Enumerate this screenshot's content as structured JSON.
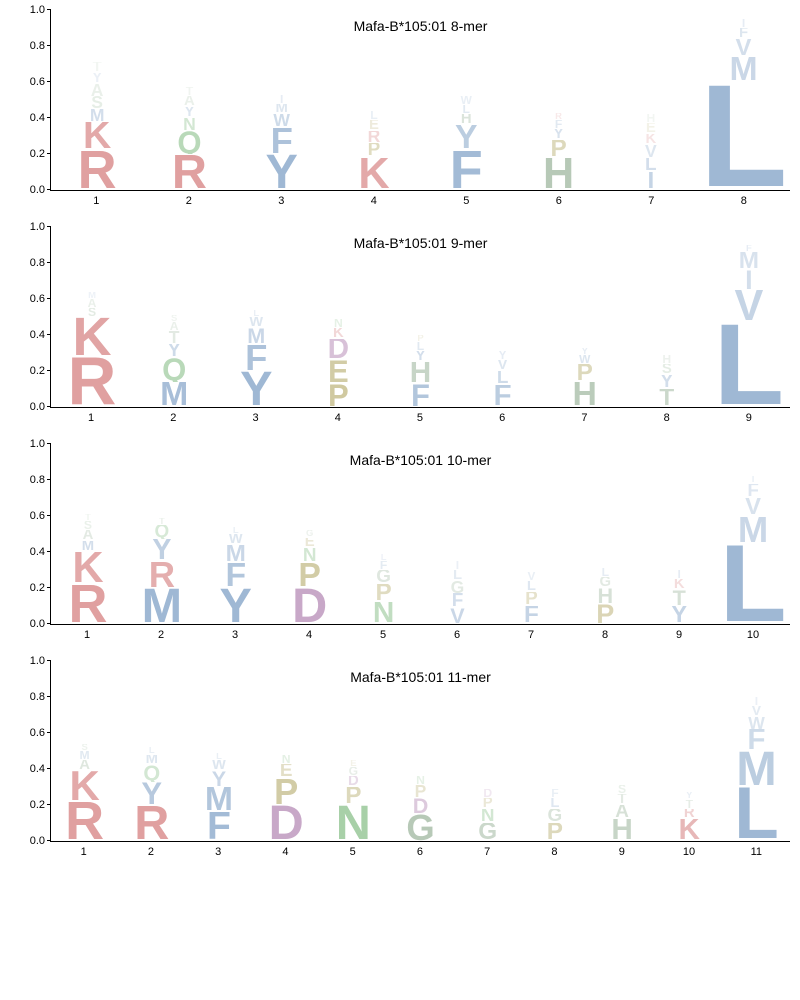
{
  "figure": {
    "background": "#ffffff",
    "axis_color": "#000000",
    "tick_fontsize": 11,
    "title_fontsize": 14,
    "yticks": [
      0.0,
      0.2,
      0.4,
      0.6,
      0.8,
      1.0
    ],
    "ytick_labels": [
      "0.0",
      "0.2",
      "0.4",
      "0.6",
      "0.8",
      "1.0"
    ],
    "letter_font": "Arial",
    "letter_weight": 900
  },
  "color_map": {
    "A": "#b0c4b0",
    "C": "#b0c4b0",
    "G": "#b0c4b0",
    "I": "#9fb8d4",
    "L": "#9fb8d4",
    "M": "#9fb8d4",
    "V": "#9fb8d4",
    "W": "#9fb8d4",
    "F": "#9fb8d4",
    "Y": "#9fb8d4",
    "R": "#e0a0a0",
    "K": "#e0a0a0",
    "H": "#b0c4b0",
    "D": "#c8a8c8",
    "E": "#c8c090",
    "N": "#a8d0a8",
    "Q": "#a8d0a8",
    "P": "#c8c090",
    "S": "#b0c8b0",
    "T": "#b0c4b0"
  },
  "panels": [
    {
      "title": "Mafa-B*105:01 8-mer",
      "positions": 8,
      "columns": [
        [
          [
            "R",
            0.22,
            1.0
          ],
          [
            "K",
            0.16,
            0.9
          ],
          [
            "M",
            0.07,
            0.45
          ],
          [
            "S",
            0.07,
            0.3
          ],
          [
            "A",
            0.07,
            0.25
          ],
          [
            "Y",
            0.06,
            0.2
          ],
          [
            "T",
            0.06,
            0.15
          ]
        ],
        [
          [
            "R",
            0.2,
            1.0
          ],
          [
            "Q",
            0.13,
            0.8
          ],
          [
            "N",
            0.07,
            0.5
          ],
          [
            "Y",
            0.06,
            0.35
          ],
          [
            "A",
            0.06,
            0.25
          ],
          [
            "T",
            0.05,
            0.18
          ]
        ],
        [
          [
            "Y",
            0.2,
            1.0
          ],
          [
            "F",
            0.15,
            0.85
          ],
          [
            "W",
            0.07,
            0.5
          ],
          [
            "M",
            0.06,
            0.35
          ],
          [
            "I",
            0.05,
            0.25
          ]
        ],
        [
          [
            "K",
            0.18,
            0.9
          ],
          [
            "P",
            0.08,
            0.55
          ],
          [
            "R",
            0.07,
            0.4
          ],
          [
            "E",
            0.06,
            0.3
          ],
          [
            "L",
            0.05,
            0.22
          ]
        ],
        [
          [
            "F",
            0.22,
            0.95
          ],
          [
            "Y",
            0.14,
            0.7
          ],
          [
            "H",
            0.06,
            0.45
          ],
          [
            "L",
            0.05,
            0.3
          ],
          [
            "W",
            0.05,
            0.22
          ]
        ],
        [
          [
            "H",
            0.18,
            0.9
          ],
          [
            "P",
            0.1,
            0.6
          ],
          [
            "Y",
            0.06,
            0.4
          ],
          [
            "F",
            0.05,
            0.3
          ],
          [
            "R",
            0.04,
            0.22
          ]
        ],
        [
          [
            "I",
            0.1,
            0.6
          ],
          [
            "L",
            0.08,
            0.45
          ],
          [
            "V",
            0.07,
            0.35
          ],
          [
            "K",
            0.06,
            0.28
          ],
          [
            "E",
            0.06,
            0.2
          ],
          [
            "H",
            0.05,
            0.15
          ]
        ],
        [
          [
            "L",
            0.6,
            1.0
          ],
          [
            "M",
            0.14,
            0.55
          ],
          [
            "V",
            0.1,
            0.45
          ],
          [
            "F",
            0.06,
            0.35
          ],
          [
            "I",
            0.05,
            0.25
          ]
        ]
      ]
    },
    {
      "title": "Mafa-B*105:01 9-mer",
      "positions": 9,
      "columns": [
        [
          [
            "R",
            0.28,
            1.0
          ],
          [
            "K",
            0.22,
            0.95
          ],
          [
            "S",
            0.05,
            0.35
          ],
          [
            "A",
            0.05,
            0.25
          ],
          [
            "M",
            0.04,
            0.18
          ]
        ],
        [
          [
            "M",
            0.14,
            0.9
          ],
          [
            "Q",
            0.13,
            0.8
          ],
          [
            "Y",
            0.08,
            0.5
          ],
          [
            "T",
            0.07,
            0.35
          ],
          [
            "A",
            0.05,
            0.25
          ],
          [
            "S",
            0.04,
            0.18
          ]
        ],
        [
          [
            "Y",
            0.2,
            1.0
          ],
          [
            "F",
            0.15,
            0.85
          ],
          [
            "M",
            0.09,
            0.55
          ],
          [
            "W",
            0.06,
            0.35
          ],
          [
            "L",
            0.04,
            0.22
          ]
        ],
        [
          [
            "P",
            0.13,
            0.85
          ],
          [
            "E",
            0.13,
            0.8
          ],
          [
            "D",
            0.12,
            0.7
          ],
          [
            "K",
            0.06,
            0.4
          ],
          [
            "N",
            0.05,
            0.28
          ]
        ],
        [
          [
            "F",
            0.13,
            0.8
          ],
          [
            "H",
            0.12,
            0.7
          ],
          [
            "Y",
            0.06,
            0.45
          ],
          [
            "L",
            0.05,
            0.3
          ],
          [
            "P",
            0.04,
            0.2
          ]
        ],
        [
          [
            "F",
            0.12,
            0.7
          ],
          [
            "L",
            0.08,
            0.5
          ],
          [
            "V",
            0.06,
            0.35
          ],
          [
            "Y",
            0.05,
            0.25
          ]
        ],
        [
          [
            "H",
            0.14,
            0.85
          ],
          [
            "P",
            0.1,
            0.6
          ],
          [
            "W",
            0.05,
            0.35
          ],
          [
            "Y",
            0.04,
            0.25
          ]
        ],
        [
          [
            "T",
            0.1,
            0.65
          ],
          [
            "Y",
            0.08,
            0.45
          ],
          [
            "S",
            0.06,
            0.32
          ],
          [
            "H",
            0.05,
            0.22
          ]
        ],
        [
          [
            "L",
            0.47,
            1.0
          ],
          [
            "V",
            0.18,
            0.6
          ],
          [
            "I",
            0.11,
            0.45
          ],
          [
            "M",
            0.1,
            0.4
          ],
          [
            "F",
            0.04,
            0.25
          ]
        ]
      ]
    },
    {
      "title": "Mafa-B*105:01 10-mer",
      "positions": 10,
      "columns": [
        [
          [
            "R",
            0.22,
            1.0
          ],
          [
            "K",
            0.18,
            0.9
          ],
          [
            "M",
            0.06,
            0.45
          ],
          [
            "A",
            0.06,
            0.35
          ],
          [
            "S",
            0.05,
            0.25
          ],
          [
            "T",
            0.04,
            0.18
          ]
        ],
        [
          [
            "M",
            0.2,
            1.0
          ],
          [
            "R",
            0.15,
            0.85
          ],
          [
            "Y",
            0.12,
            0.65
          ],
          [
            "Q",
            0.08,
            0.45
          ],
          [
            "T",
            0.04,
            0.25
          ]
        ],
        [
          [
            "Y",
            0.2,
            1.0
          ],
          [
            "F",
            0.14,
            0.8
          ],
          [
            "M",
            0.1,
            0.55
          ],
          [
            "W",
            0.06,
            0.35
          ],
          [
            "L",
            0.04,
            0.22
          ]
        ],
        [
          [
            "D",
            0.2,
            1.0
          ],
          [
            "P",
            0.14,
            0.8
          ],
          [
            "N",
            0.08,
            0.5
          ],
          [
            "E",
            0.06,
            0.35
          ],
          [
            "G",
            0.04,
            0.22
          ]
        ],
        [
          [
            "N",
            0.12,
            0.7
          ],
          [
            "P",
            0.1,
            0.55
          ],
          [
            "G",
            0.08,
            0.4
          ],
          [
            "F",
            0.05,
            0.28
          ],
          [
            "L",
            0.04,
            0.18
          ]
        ],
        [
          [
            "V",
            0.09,
            0.55
          ],
          [
            "F",
            0.08,
            0.45
          ],
          [
            "G",
            0.07,
            0.35
          ],
          [
            "L",
            0.06,
            0.28
          ],
          [
            "I",
            0.05,
            0.2
          ]
        ],
        [
          [
            "F",
            0.1,
            0.6
          ],
          [
            "P",
            0.08,
            0.45
          ],
          [
            "L",
            0.06,
            0.32
          ],
          [
            "V",
            0.05,
            0.22
          ]
        ],
        [
          [
            "P",
            0.11,
            0.65
          ],
          [
            "H",
            0.09,
            0.5
          ],
          [
            "G",
            0.06,
            0.35
          ],
          [
            "L",
            0.05,
            0.25
          ]
        ],
        [
          [
            "Y",
            0.1,
            0.6
          ],
          [
            "T",
            0.09,
            0.5
          ],
          [
            "K",
            0.06,
            0.35
          ],
          [
            "I",
            0.05,
            0.25
          ]
        ],
        [
          [
            "L",
            0.45,
            1.0
          ],
          [
            "M",
            0.15,
            0.55
          ],
          [
            "V",
            0.1,
            0.4
          ],
          [
            "F",
            0.08,
            0.32
          ],
          [
            "I",
            0.04,
            0.22
          ]
        ]
      ]
    },
    {
      "title": "Mafa-B*105:01 11-mer",
      "positions": 11,
      "columns": [
        [
          [
            "R",
            0.22,
            1.0
          ],
          [
            "K",
            0.17,
            0.9
          ],
          [
            "A",
            0.06,
            0.4
          ],
          [
            "M",
            0.05,
            0.3
          ],
          [
            "S",
            0.04,
            0.22
          ]
        ],
        [
          [
            "R",
            0.2,
            1.0
          ],
          [
            "Y",
            0.13,
            0.75
          ],
          [
            "Q",
            0.09,
            0.5
          ],
          [
            "M",
            0.06,
            0.35
          ],
          [
            "L",
            0.04,
            0.22
          ]
        ],
        [
          [
            "F",
            0.16,
            0.95
          ],
          [
            "M",
            0.14,
            0.8
          ],
          [
            "Y",
            0.09,
            0.55
          ],
          [
            "W",
            0.06,
            0.35
          ],
          [
            "L",
            0.04,
            0.22
          ]
        ],
        [
          [
            "D",
            0.2,
            1.0
          ],
          [
            "P",
            0.15,
            0.8
          ],
          [
            "E",
            0.08,
            0.5
          ],
          [
            "N",
            0.05,
            0.3
          ]
        ],
        [
          [
            "N",
            0.2,
            1.0
          ],
          [
            "P",
            0.1,
            0.6
          ],
          [
            "D",
            0.06,
            0.4
          ],
          [
            "G",
            0.05,
            0.28
          ],
          [
            "E",
            0.04,
            0.2
          ]
        ],
        [
          [
            "G",
            0.15,
            0.9
          ],
          [
            "D",
            0.09,
            0.6
          ],
          [
            "P",
            0.07,
            0.4
          ],
          [
            "N",
            0.05,
            0.28
          ]
        ],
        [
          [
            "G",
            0.1,
            0.65
          ],
          [
            "N",
            0.08,
            0.5
          ],
          [
            "P",
            0.06,
            0.35
          ],
          [
            "D",
            0.05,
            0.25
          ]
        ],
        [
          [
            "P",
            0.1,
            0.6
          ],
          [
            "G",
            0.08,
            0.45
          ],
          [
            "L",
            0.06,
            0.32
          ],
          [
            "F",
            0.05,
            0.22
          ]
        ],
        [
          [
            "H",
            0.12,
            0.7
          ],
          [
            "A",
            0.08,
            0.5
          ],
          [
            "T",
            0.06,
            0.35
          ],
          [
            "S",
            0.05,
            0.25
          ]
        ],
        [
          [
            "K",
            0.12,
            0.75
          ],
          [
            "R",
            0.06,
            0.45
          ],
          [
            "T",
            0.05,
            0.3
          ],
          [
            "Y",
            0.04,
            0.22
          ]
        ],
        [
          [
            "L",
            0.3,
            1.0
          ],
          [
            "M",
            0.2,
            0.7
          ],
          [
            "F",
            0.12,
            0.5
          ],
          [
            "W",
            0.07,
            0.35
          ],
          [
            "V",
            0.06,
            0.28
          ],
          [
            "I",
            0.05,
            0.2
          ]
        ]
      ]
    }
  ]
}
